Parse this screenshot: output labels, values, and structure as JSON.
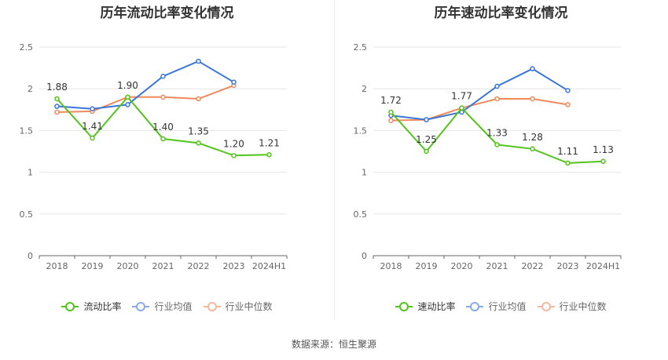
{
  "chart_data": [
    {
      "type": "line",
      "title": "历年流动比率变化情况",
      "categories": [
        "2018",
        "2019",
        "2020",
        "2021",
        "2022",
        "2023",
        "2024H1"
      ],
      "ylim": [
        0,
        2.5
      ],
      "yticks": [
        "0",
        "0.5",
        "1",
        "1.5",
        "2",
        "2.5"
      ],
      "grid": true,
      "legend_position": "bottom",
      "series": [
        {
          "name": "流动比率",
          "color": "#52c41a",
          "values": [
            1.88,
            1.41,
            1.9,
            1.4,
            1.35,
            1.2,
            1.21
          ],
          "labels": [
            "1.88",
            "1.41",
            "1.90",
            "1.40",
            "1.35",
            "1.20",
            "1.21"
          ]
        },
        {
          "name": "行业均值",
          "color": "#3a75d8",
          "values": [
            1.79,
            1.76,
            1.81,
            2.15,
            2.33,
            2.08,
            null
          ]
        },
        {
          "name": "行业中位数",
          "color": "#f08a5d",
          "values": [
            1.72,
            1.73,
            1.9,
            1.9,
            1.88,
            2.04,
            null
          ]
        }
      ]
    },
    {
      "type": "line",
      "title": "历年速动比率变化情况",
      "categories": [
        "2018",
        "2019",
        "2020",
        "2021",
        "2022",
        "2023",
        "2024H1"
      ],
      "ylim": [
        0,
        2.5
      ],
      "yticks": [
        "0",
        "0.5",
        "1",
        "1.5",
        "2",
        "2.5"
      ],
      "grid": true,
      "legend_position": "bottom",
      "series": [
        {
          "name": "速动比率",
          "color": "#52c41a",
          "values": [
            1.72,
            1.25,
            1.77,
            1.33,
            1.28,
            1.11,
            1.13
          ],
          "labels": [
            "1.72",
            "1.25",
            "1.77",
            "1.33",
            "1.28",
            "1.11",
            "1.13"
          ]
        },
        {
          "name": "行业均值",
          "color": "#3a75d8",
          "values": [
            1.68,
            1.63,
            1.72,
            2.03,
            2.24,
            1.98,
            null
          ]
        },
        {
          "name": "行业中位数",
          "color": "#f08a5d",
          "values": [
            1.62,
            1.63,
            1.77,
            1.88,
            1.88,
            1.81,
            null
          ]
        }
      ]
    }
  ],
  "source": "数据来源：恒生聚源"
}
